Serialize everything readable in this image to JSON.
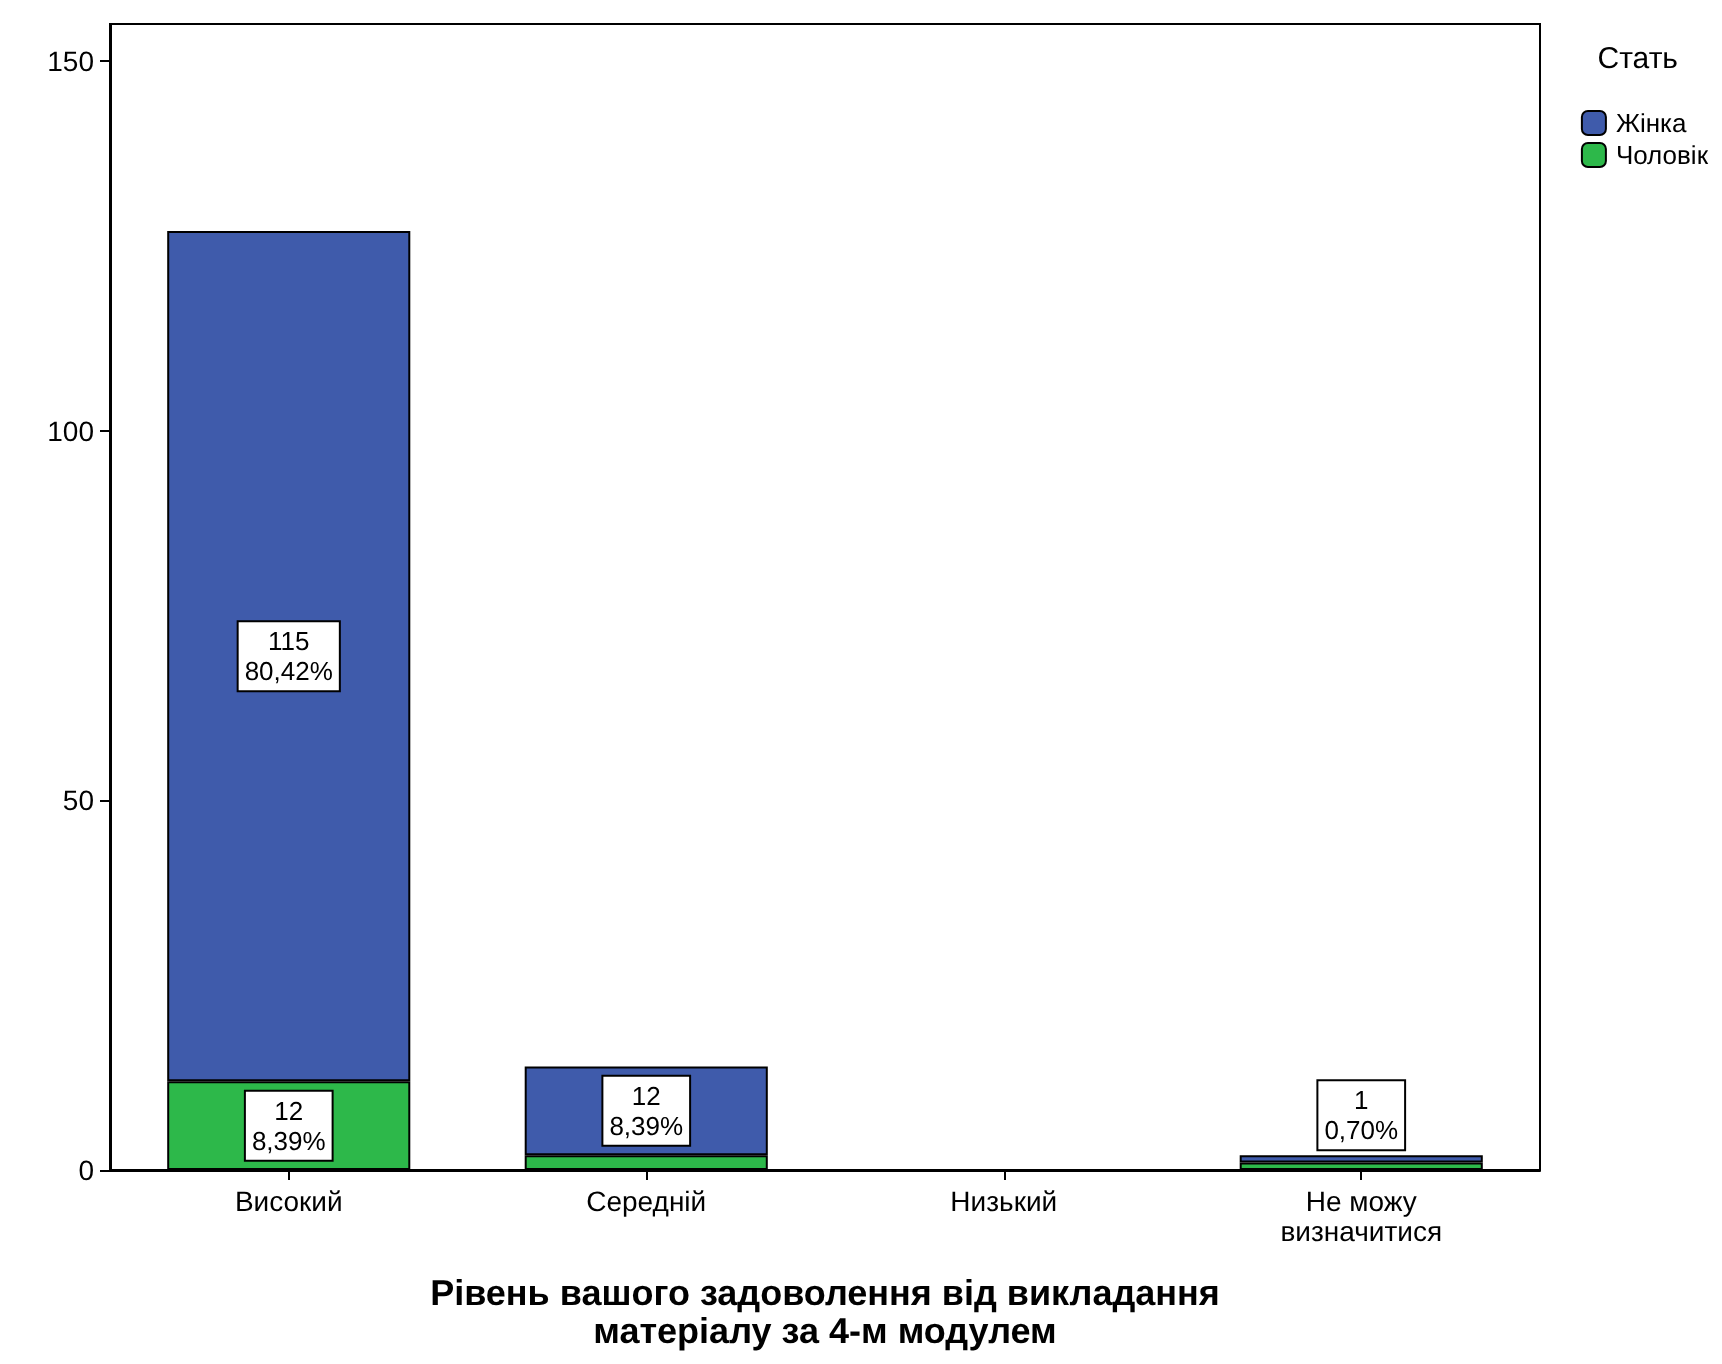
{
  "chart_data": {
    "type": "bar",
    "stacked": true,
    "xlabel": "Рівень вашого задоволення від викладання\nматеріалу за 4-м модулем",
    "legend_title": "Стать",
    "legend": "top right",
    "grid": false,
    "categories": [
      "Високий",
      "Середній",
      "Низький",
      "Не можу\nвизначитися"
    ],
    "ylim": [
      0,
      155
    ],
    "yticks": [
      0,
      50,
      100,
      150
    ],
    "series": [
      {
        "name": "Чоловік",
        "color": "#2db84a",
        "values": [
          12,
          2,
          null,
          1
        ],
        "value_labels": [
          "12\n8,39%",
          null,
          null,
          null
        ]
      },
      {
        "name": "Жінка",
        "color": "#3f5bab",
        "values": [
          115,
          12,
          null,
          1
        ],
        "value_labels": [
          "115\n80,42%",
          "12\n8,39%",
          null,
          "1\n0,70%"
        ]
      }
    ]
  }
}
